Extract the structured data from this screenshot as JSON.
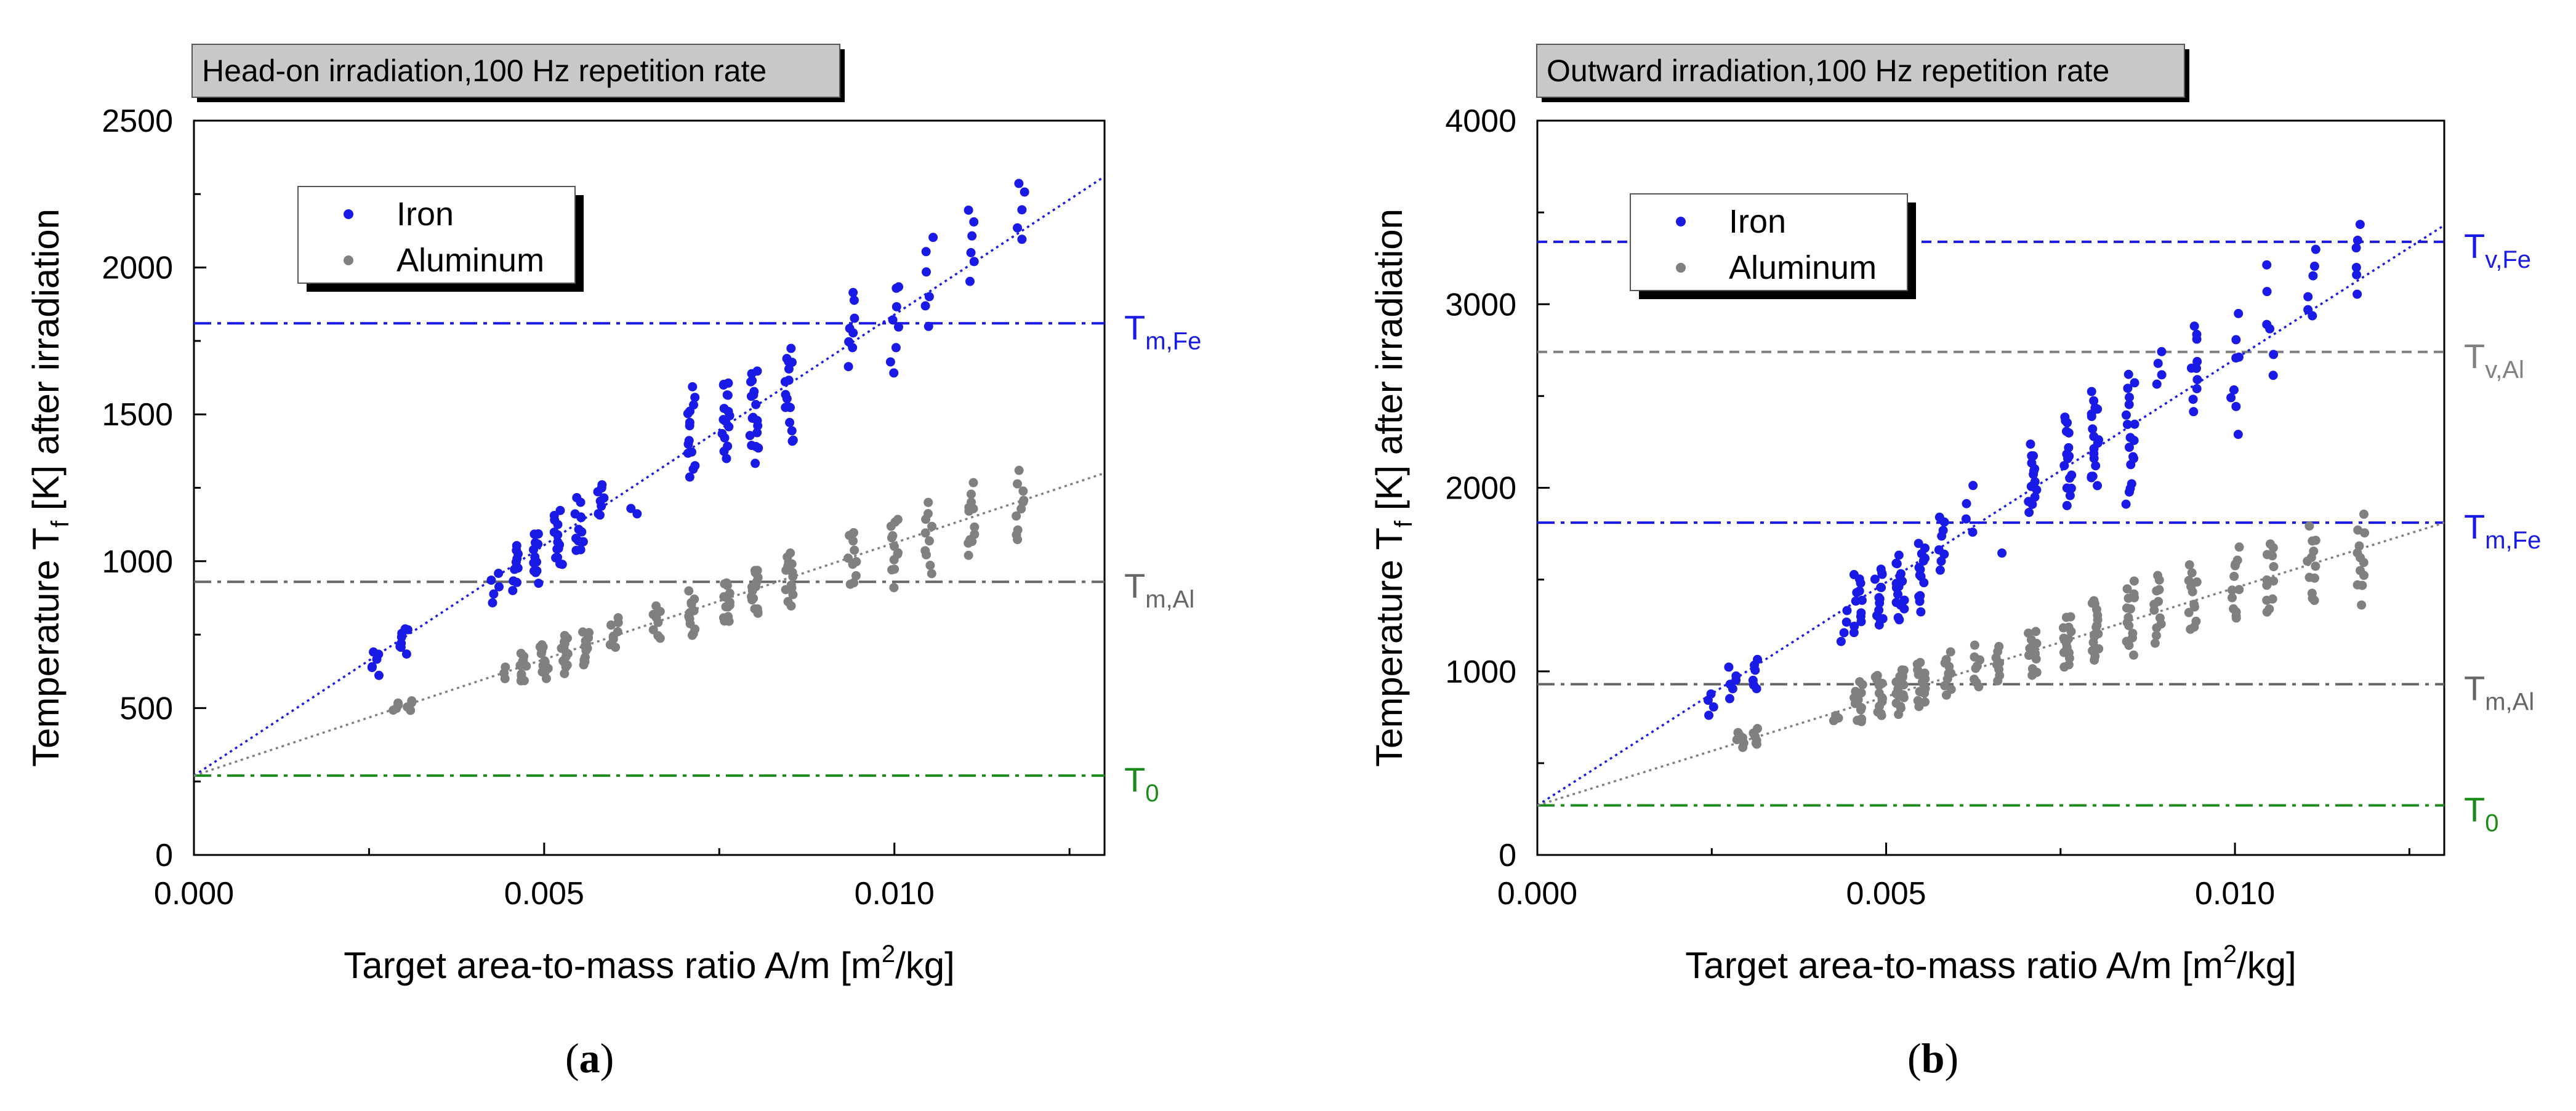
{
  "figure": {
    "captions": [
      "(a)",
      "(b)"
    ],
    "caption_letters": [
      "a",
      "b"
    ]
  },
  "chart_data": [
    {
      "type": "scatter",
      "panel_label": "Head-on irradiation,100 Hz repetition rate",
      "xlabel": "Target area-to-mass ratio A/m [m2/kg]",
      "ylabel": "Temperature Tf [K] after irradiation",
      "xlim": [
        0,
        0.013
      ],
      "ylim": [
        0,
        2500
      ],
      "xticks": [
        0.0,
        0.005,
        0.01
      ],
      "xtick_labels": [
        "0.000",
        "0.005",
        "0.010"
      ],
      "yticks": [
        0,
        500,
        1000,
        1500,
        2000,
        2500
      ],
      "ytick_labels": [
        "0",
        "500",
        "1000",
        "1500",
        "2000",
        "2500"
      ],
      "legend": {
        "location": "upper-left",
        "entries": [
          "Iron",
          "Aluminum"
        ]
      },
      "colors": {
        "Iron": "#1a1ae6",
        "Aluminum": "#808080",
        "T0": "#1a8a1a"
      },
      "series": [
        {
          "name": "Iron",
          "fit_line": {
            "x": [
              0,
              0.013
            ],
            "y": [
              270,
              2310
            ]
          },
          "groups": [
            {
              "x": 0.0026,
              "ymin": 610,
              "ymax": 700,
              "n": 6
            },
            {
              "x": 0.003,
              "ymin": 680,
              "ymax": 780,
              "n": 8
            },
            {
              "x": 0.0043,
              "ymin": 850,
              "ymax": 960,
              "n": 5
            },
            {
              "x": 0.0046,
              "ymin": 890,
              "ymax": 1080,
              "n": 10
            },
            {
              "x": 0.0049,
              "ymin": 920,
              "ymax": 1110,
              "n": 12
            },
            {
              "x": 0.0052,
              "ymin": 960,
              "ymax": 1180,
              "n": 14
            },
            {
              "x": 0.0055,
              "ymin": 1010,
              "ymax": 1220,
              "n": 12
            },
            {
              "x": 0.0058,
              "ymin": 1140,
              "ymax": 1270,
              "n": 8
            },
            {
              "x": 0.0063,
              "ymin": 1160,
              "ymax": 1180,
              "n": 2
            },
            {
              "x": 0.0071,
              "ymin": 1280,
              "ymax": 1600,
              "n": 14
            },
            {
              "x": 0.0076,
              "ymin": 1330,
              "ymax": 1640,
              "n": 16
            },
            {
              "x": 0.008,
              "ymin": 1330,
              "ymax": 1680,
              "n": 18
            },
            {
              "x": 0.0085,
              "ymin": 1390,
              "ymax": 1750,
              "n": 16
            },
            {
              "x": 0.0094,
              "ymin": 1660,
              "ymax": 1930,
              "n": 8
            },
            {
              "x": 0.01,
              "ymin": 1630,
              "ymax": 1980,
              "n": 8
            },
            {
              "x": 0.0105,
              "ymin": 1760,
              "ymax": 2120,
              "n": 6
            },
            {
              "x": 0.0111,
              "ymin": 1950,
              "ymax": 2200,
              "n": 6
            },
            {
              "x": 0.0118,
              "ymin": 2080,
              "ymax": 2310,
              "n": 5
            }
          ]
        },
        {
          "name": "Aluminum",
          "fit_line": {
            "x": [
              0,
              0.013
            ],
            "y": [
              270,
              1300
            ]
          },
          "groups": [
            {
              "x": 0.0029,
              "ymin": 490,
              "ymax": 520,
              "n": 4
            },
            {
              "x": 0.0031,
              "ymin": 490,
              "ymax": 530,
              "n": 4
            },
            {
              "x": 0.0044,
              "ymin": 600,
              "ymax": 640,
              "n": 3
            },
            {
              "x": 0.0047,
              "ymin": 580,
              "ymax": 700,
              "n": 10
            },
            {
              "x": 0.005,
              "ymin": 600,
              "ymax": 730,
              "n": 12
            },
            {
              "x": 0.0053,
              "ymin": 610,
              "ymax": 750,
              "n": 14
            },
            {
              "x": 0.0056,
              "ymin": 640,
              "ymax": 780,
              "n": 12
            },
            {
              "x": 0.006,
              "ymin": 700,
              "ymax": 820,
              "n": 8
            },
            {
              "x": 0.0066,
              "ymin": 720,
              "ymax": 860,
              "n": 8
            },
            {
              "x": 0.0071,
              "ymin": 740,
              "ymax": 900,
              "n": 12
            },
            {
              "x": 0.0076,
              "ymin": 780,
              "ymax": 940,
              "n": 14
            },
            {
              "x": 0.008,
              "ymin": 800,
              "ymax": 990,
              "n": 16
            },
            {
              "x": 0.0085,
              "ymin": 830,
              "ymax": 1050,
              "n": 14
            },
            {
              "x": 0.0094,
              "ymin": 900,
              "ymax": 1110,
              "n": 10
            },
            {
              "x": 0.01,
              "ymin": 910,
              "ymax": 1180,
              "n": 12
            },
            {
              "x": 0.0105,
              "ymin": 950,
              "ymax": 1220,
              "n": 10
            },
            {
              "x": 0.0111,
              "ymin": 1000,
              "ymax": 1280,
              "n": 12
            },
            {
              "x": 0.0118,
              "ymin": 1040,
              "ymax": 1320,
              "n": 10
            }
          ]
        }
      ],
      "ref_lines": [
        {
          "label": "Tm,Fe",
          "main": "T",
          "sub": "m,Fe",
          "y": 1810,
          "color": "#1a1ae6",
          "style": "dashdot"
        },
        {
          "label": "Tm,Al",
          "main": "T",
          "sub": "m,Al",
          "y": 930,
          "color": "#666666",
          "style": "dashdot"
        },
        {
          "label": "T0",
          "main": "T",
          "sub": "0",
          "y": 270,
          "color": "#1a8a1a",
          "style": "dashdot"
        }
      ]
    },
    {
      "type": "scatter",
      "panel_label": "Outward irradiation,100 Hz repetition rate",
      "xlabel": "Target area-to-mass ratio A/m [m2/kg]",
      "ylabel": "Temperature Tf [K] after irradiation",
      "xlim": [
        0,
        0.013
      ],
      "ylim": [
        0,
        4000
      ],
      "xticks": [
        0.0,
        0.005,
        0.01
      ],
      "xtick_labels": [
        "0.000",
        "0.005",
        "0.010"
      ],
      "yticks": [
        0,
        1000,
        2000,
        3000,
        4000
      ],
      "ytick_labels": [
        "0",
        "1000",
        "2000",
        "3000",
        "4000"
      ],
      "legend": {
        "location": "upper-left",
        "entries": [
          "Iron",
          "Aluminum"
        ]
      },
      "colors": {
        "Iron": "#1a1ae6",
        "Aluminum": "#808080",
        "T0": "#1a8a1a"
      },
      "series": [
        {
          "name": "Iron",
          "fit_line": {
            "x": [
              0,
              0.013
            ],
            "y": [
              270,
              3430
            ]
          },
          "groups": [
            {
              "x": 0.0025,
              "ymin": 760,
              "ymax": 880,
              "n": 4
            },
            {
              "x": 0.0028,
              "ymin": 850,
              "ymax": 1030,
              "n": 6
            },
            {
              "x": 0.0031,
              "ymin": 890,
              "ymax": 1070,
              "n": 6
            },
            {
              "x": 0.0044,
              "ymin": 1150,
              "ymax": 1340,
              "n": 4
            },
            {
              "x": 0.0046,
              "ymin": 1190,
              "ymax": 1560,
              "n": 12
            },
            {
              "x": 0.0049,
              "ymin": 1220,
              "ymax": 1590,
              "n": 14
            },
            {
              "x": 0.0052,
              "ymin": 1260,
              "ymax": 1640,
              "n": 16
            },
            {
              "x": 0.0055,
              "ymin": 1320,
              "ymax": 1750,
              "n": 14
            },
            {
              "x": 0.0058,
              "ymin": 1540,
              "ymax": 1860,
              "n": 8
            },
            {
              "x": 0.0062,
              "ymin": 1730,
              "ymax": 2030,
              "n": 4
            },
            {
              "x": 0.0066,
              "ymin": 1640,
              "ymax": 1650,
              "n": 1
            },
            {
              "x": 0.0071,
              "ymin": 1850,
              "ymax": 2250,
              "n": 14
            },
            {
              "x": 0.0076,
              "ymin": 1900,
              "ymax": 2430,
              "n": 16
            },
            {
              "x": 0.008,
              "ymin": 1950,
              "ymax": 2560,
              "n": 18
            },
            {
              "x": 0.0085,
              "ymin": 1850,
              "ymax": 2660,
              "n": 18
            },
            {
              "x": 0.0089,
              "ymin": 2550,
              "ymax": 2760,
              "n": 4
            },
            {
              "x": 0.0094,
              "ymin": 2380,
              "ymax": 2920,
              "n": 10
            },
            {
              "x": 0.01,
              "ymin": 2280,
              "ymax": 2970,
              "n": 8
            },
            {
              "x": 0.0105,
              "ymin": 2500,
              "ymax": 3260,
              "n": 6
            },
            {
              "x": 0.0111,
              "ymin": 2880,
              "ymax": 3310,
              "n": 6
            },
            {
              "x": 0.0118,
              "ymin": 3040,
              "ymax": 3470,
              "n": 6
            }
          ]
        },
        {
          "name": "Aluminum",
          "fit_line": {
            "x": [
              0,
              0.013
            ],
            "y": [
              270,
              1810
            ]
          },
          "groups": [
            {
              "x": 0.0029,
              "ymin": 580,
              "ymax": 680,
              "n": 6
            },
            {
              "x": 0.0031,
              "ymin": 590,
              "ymax": 690,
              "n": 6
            },
            {
              "x": 0.0043,
              "ymin": 730,
              "ymax": 760,
              "n": 3
            },
            {
              "x": 0.0046,
              "ymin": 700,
              "ymax": 960,
              "n": 12
            },
            {
              "x": 0.0049,
              "ymin": 730,
              "ymax": 1000,
              "n": 14
            },
            {
              "x": 0.0052,
              "ymin": 750,
              "ymax": 1040,
              "n": 16
            },
            {
              "x": 0.0055,
              "ymin": 790,
              "ymax": 1080,
              "n": 14
            },
            {
              "x": 0.0059,
              "ymin": 860,
              "ymax": 1110,
              "n": 10
            },
            {
              "x": 0.0063,
              "ymin": 880,
              "ymax": 1150,
              "n": 8
            },
            {
              "x": 0.0066,
              "ymin": 920,
              "ymax": 1170,
              "n": 8
            },
            {
              "x": 0.0071,
              "ymin": 960,
              "ymax": 1260,
              "n": 12
            },
            {
              "x": 0.0076,
              "ymin": 1000,
              "ymax": 1330,
              "n": 14
            },
            {
              "x": 0.008,
              "ymin": 1040,
              "ymax": 1420,
              "n": 16
            },
            {
              "x": 0.0085,
              "ymin": 1070,
              "ymax": 1500,
              "n": 16
            },
            {
              "x": 0.0089,
              "ymin": 1130,
              "ymax": 1560,
              "n": 12
            },
            {
              "x": 0.0094,
              "ymin": 1170,
              "ymax": 1600,
              "n": 12
            },
            {
              "x": 0.01,
              "ymin": 1220,
              "ymax": 1700,
              "n": 12
            },
            {
              "x": 0.0105,
              "ymin": 1280,
              "ymax": 1740,
              "n": 12
            },
            {
              "x": 0.0111,
              "ymin": 1330,
              "ymax": 1820,
              "n": 12
            },
            {
              "x": 0.0118,
              "ymin": 1360,
              "ymax": 1860,
              "n": 12
            }
          ]
        }
      ],
      "ref_lines": [
        {
          "label": "Tv,Fe",
          "main": "T",
          "sub": "v,Fe",
          "y": 3340,
          "color": "#1a1ae6",
          "style": "dashed"
        },
        {
          "label": "Tv,Al",
          "main": "T",
          "sub": "v,Al",
          "y": 2740,
          "color": "#808080",
          "style": "dashed"
        },
        {
          "label": "Tm,Fe",
          "main": "T",
          "sub": "m,Fe",
          "y": 1810,
          "color": "#1a1ae6",
          "style": "dashdot"
        },
        {
          "label": "Tm,Al",
          "main": "T",
          "sub": "m,Al",
          "y": 930,
          "color": "#666666",
          "style": "dashdot"
        },
        {
          "label": "T0",
          "main": "T",
          "sub": "0",
          "y": 270,
          "color": "#1a8a1a",
          "style": "dashdot"
        }
      ]
    }
  ]
}
